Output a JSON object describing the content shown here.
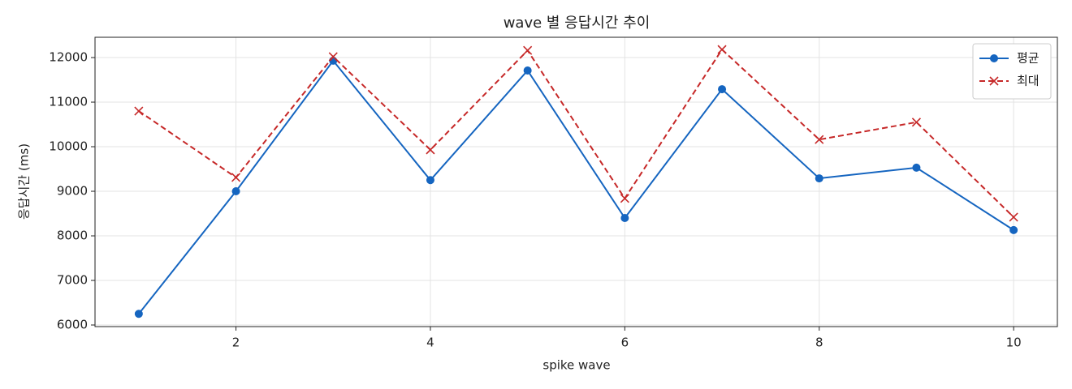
{
  "chart_data": {
    "type": "line",
    "title": "wave 별 응답시간 추이",
    "x_label": "spike wave",
    "y_label": "응답시간 (ms)",
    "x": [
      1,
      2,
      3,
      4,
      5,
      6,
      7,
      8,
      9,
      10
    ],
    "series": [
      {
        "name": "평균",
        "color": "#1565c0",
        "marker": "o",
        "linestyle": "solid",
        "values": [
          6250,
          9000,
          11930,
          9250,
          11710,
          8400,
          11290,
          9290,
          9530,
          8130
        ]
      },
      {
        "name": "최대",
        "color": "#c62828",
        "marker": "x",
        "linestyle": "dashed",
        "values": [
          10800,
          9310,
          12020,
          9930,
          12160,
          8840,
          12180,
          10160,
          10550,
          8420
        ]
      }
    ],
    "xlim": [
      0.55,
      10.45
    ],
    "xticks": [
      2,
      4,
      6,
      8,
      10
    ],
    "ylim": [
      5964,
      12455
    ],
    "yticks": [
      6000,
      7000,
      8000,
      9000,
      10000,
      11000,
      12000
    ],
    "grid": true,
    "legend": "upper right"
  }
}
